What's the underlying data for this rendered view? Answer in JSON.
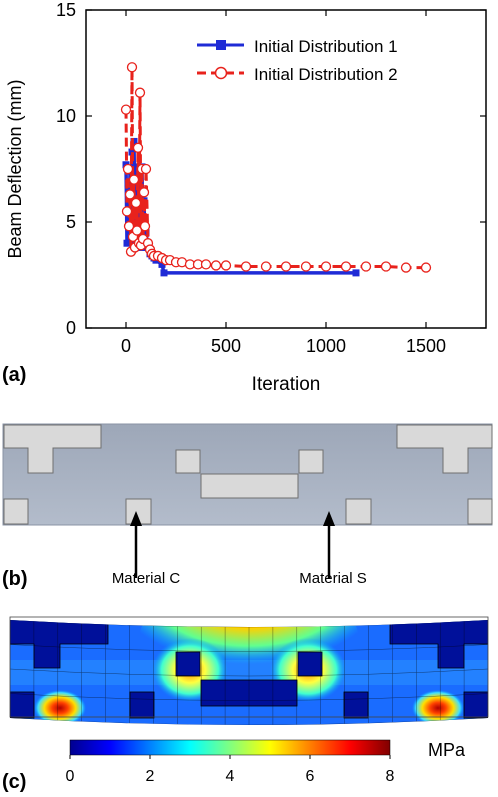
{
  "panel_labels": {
    "a": "(a)",
    "b": "(b)",
    "c": "(c)"
  },
  "chart_data": {
    "type": "line",
    "xlabel": "Iteration",
    "ylabel": "Beam Deflection (mm)",
    "xlim": [
      -200,
      1800
    ],
    "ylim": [
      0,
      15
    ],
    "xticks": [
      0,
      500,
      1000,
      1500
    ],
    "yticks": [
      0,
      5,
      10,
      15
    ],
    "legend": "top-right",
    "series": [
      {
        "name": "Initial Distribution 1",
        "color": "#1f2bd6",
        "marker": "square",
        "line": "solid",
        "x": [
          0,
          5,
          10,
          15,
          20,
          25,
          30,
          35,
          40,
          45,
          50,
          55,
          60,
          65,
          70,
          75,
          80,
          85,
          90,
          95,
          100,
          110,
          120,
          130,
          140,
          150,
          180,
          190,
          1150
        ],
        "y": [
          7.7,
          4.0,
          6.8,
          4.5,
          7.4,
          4.2,
          8.3,
          3.9,
          8.8,
          4.6,
          7.6,
          4.1,
          7.0,
          4.3,
          6.5,
          3.8,
          7.6,
          3.8,
          6.0,
          3.9,
          4.5,
          3.8,
          3.5,
          3.4,
          3.3,
          3.2,
          3.0,
          2.6,
          2.6
        ]
      },
      {
        "name": "Initial Distribution 2",
        "color": "#e8221c",
        "marker": "circle",
        "line": "dashed",
        "x": [
          0,
          5,
          10,
          15,
          20,
          25,
          30,
          35,
          40,
          45,
          50,
          55,
          60,
          65,
          70,
          75,
          80,
          85,
          90,
          95,
          100,
          110,
          120,
          130,
          140,
          160,
          180,
          200,
          220,
          250,
          280,
          320,
          360,
          400,
          450,
          500,
          600,
          700,
          800,
          900,
          1000,
          1100,
          1200,
          1300,
          1400,
          1500
        ],
        "y": [
          10.3,
          5.5,
          7.5,
          4.8,
          6.3,
          3.6,
          12.3,
          4.3,
          7.0,
          3.8,
          5.9,
          4.6,
          8.5,
          4.0,
          11.1,
          3.9,
          7.5,
          4.2,
          6.4,
          4.8,
          7.5,
          4.0,
          3.7,
          3.5,
          3.4,
          3.4,
          3.3,
          3.2,
          3.2,
          3.1,
          3.1,
          3.0,
          3.0,
          3.0,
          2.95,
          2.95,
          2.9,
          2.9,
          2.9,
          2.9,
          2.9,
          2.9,
          2.9,
          2.9,
          2.85,
          2.85
        ]
      }
    ]
  },
  "panel_b": {
    "annotations": [
      "Material C",
      "Material S"
    ]
  },
  "panel_c": {
    "colorbar": {
      "unit": "MPa",
      "ticks": [
        "0",
        "2",
        "4",
        "6",
        "8"
      ],
      "min": 0,
      "max": 8,
      "colors": [
        "#00008f",
        "#0000ff",
        "#0080ff",
        "#00ffff",
        "#80ff80",
        "#ffff00",
        "#ff8000",
        "#ff0000",
        "#800000"
      ]
    }
  }
}
